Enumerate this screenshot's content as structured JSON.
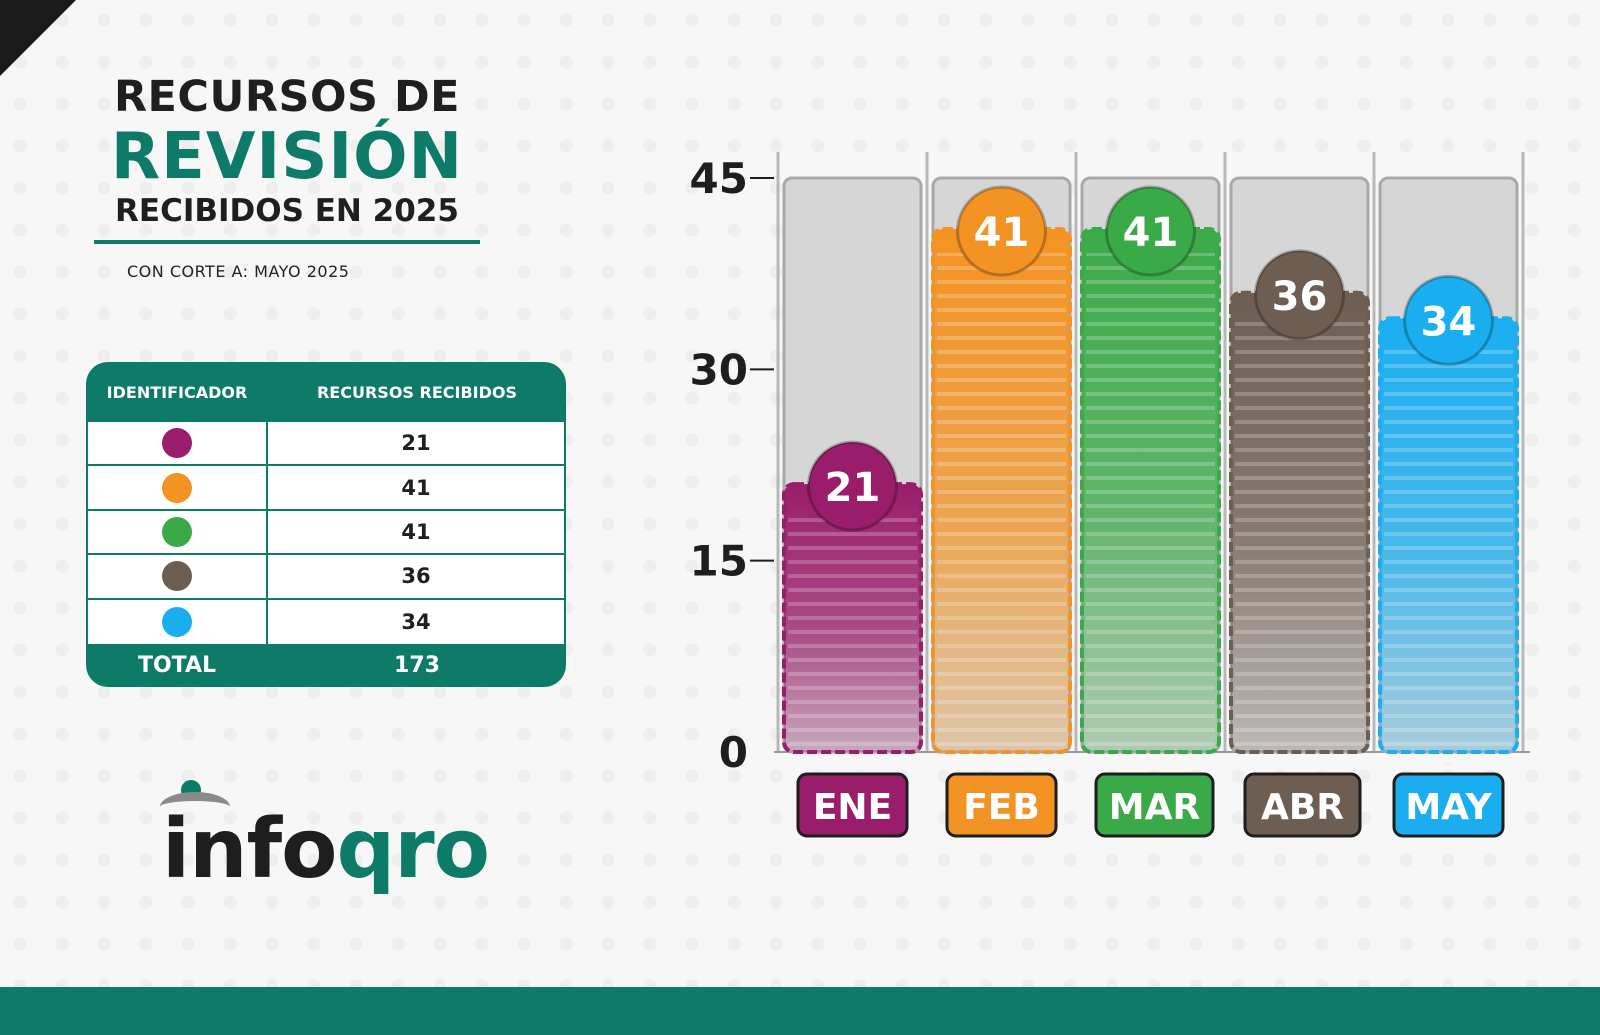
{
  "title": {
    "line1": "RECURSOS DE",
    "line2": "REVISIÓN",
    "line3": "RECIBIDOS EN 2025",
    "subtitle": "CON CORTE A: MAYO 2025"
  },
  "table": {
    "headers": [
      "IDENTIFICADOR",
      "RECURSOS RECIBIDOS"
    ],
    "rows": [
      {
        "color": "#9a1d6b",
        "value": "21"
      },
      {
        "color": "#f39323",
        "value": "41"
      },
      {
        "color": "#3aaa48",
        "value": "41"
      },
      {
        "color": "#6e5e52",
        "value": "36"
      },
      {
        "color": "#1aaef0",
        "value": "34"
      }
    ],
    "total_label": "TOTAL",
    "total_value": "173"
  },
  "logo": {
    "part1": "info",
    "part2": "qro"
  },
  "colors": {
    "brand": "#0e7b69"
  },
  "chart_data": {
    "type": "bar",
    "categories": [
      "ENE",
      "FEB",
      "MAR",
      "ABR",
      "MAY"
    ],
    "values": [
      21,
      41,
      41,
      36,
      34
    ],
    "colors": [
      "#9a1d6b",
      "#f39323",
      "#3aaa48",
      "#6e5e52",
      "#1aaef0"
    ],
    "yticks": [
      0,
      15,
      30,
      45
    ],
    "ylim": [
      0,
      45
    ],
    "title": "",
    "xlabel": "",
    "ylabel": ""
  }
}
